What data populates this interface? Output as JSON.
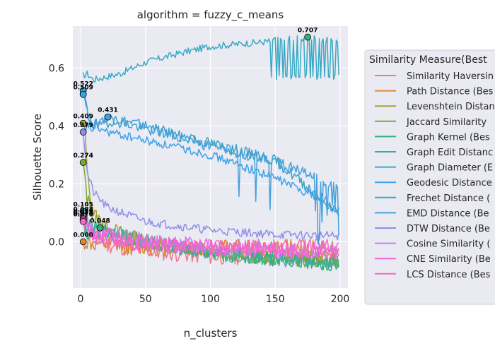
{
  "chart_data": {
    "type": "line",
    "title": "algorithm = fuzzy_c_means",
    "xlabel": "n_clusters",
    "ylabel": "Silhouette Score",
    "xlim": [
      -6,
      206
    ],
    "ylim": [
      -0.16,
      0.745
    ],
    "xticks": [
      0,
      50,
      100,
      150,
      200
    ],
    "yticks": [
      0.0,
      0.2,
      0.4,
      0.6
    ],
    "grid": true,
    "legend_position": "right (outside)",
    "legend_title": "Similarity Measure(Best",
    "series": [
      {
        "name": "Similarity Haversin",
        "color": "#f77189",
        "best_x": 2,
        "best_y": 0.079,
        "anchors": [
          [
            2,
            0.079
          ],
          [
            5,
            0.05
          ],
          [
            10,
            0.02
          ],
          [
            20,
            -0.01
          ],
          [
            50,
            -0.03
          ],
          [
            100,
            -0.05
          ],
          [
            150,
            -0.05
          ],
          [
            200,
            -0.06
          ]
        ],
        "noise": 0.03,
        "seed": 11
      },
      {
        "name": "Path Distance (Bes",
        "color": "#dc8932",
        "best_x": 2,
        "best_y": 0.0,
        "anchors": [
          [
            2,
            0.0
          ],
          [
            10,
            -0.01
          ],
          [
            50,
            -0.02
          ],
          [
            100,
            -0.02
          ],
          [
            200,
            -0.02
          ]
        ],
        "noise": 0.03,
        "seed": 12
      },
      {
        "name": "Levenshtein Distan",
        "color": "#ae9d31",
        "best_x": 3,
        "best_y": 0.409,
        "anchors": [
          [
            2,
            0.4
          ],
          [
            3,
            0.409
          ],
          [
            6,
            0.2
          ],
          [
            10,
            0.1
          ],
          [
            20,
            0.05
          ],
          [
            50,
            0.0
          ],
          [
            100,
            -0.03
          ],
          [
            150,
            -0.05
          ],
          [
            200,
            -0.06
          ]
        ],
        "noise": 0.025,
        "seed": 13
      },
      {
        "name": "Jaccard Similarity",
        "color": "#77ab31",
        "best_x": 2,
        "best_y": 0.274,
        "anchors": [
          [
            2,
            0.274
          ],
          [
            5,
            0.15
          ],
          [
            10,
            0.08
          ],
          [
            20,
            0.04
          ],
          [
            50,
            0.0
          ],
          [
            100,
            -0.04
          ],
          [
            150,
            -0.06
          ],
          [
            200,
            -0.07
          ]
        ],
        "noise": 0.025,
        "seed": 14
      },
      {
        "name": "Graph Kernel (Bes",
        "color": "#33b07a",
        "best_x": 15,
        "best_y": 0.048,
        "anchors": [
          [
            2,
            0.03
          ],
          [
            15,
            0.048
          ],
          [
            30,
            0.02
          ],
          [
            50,
            0.0
          ],
          [
            100,
            -0.04
          ],
          [
            150,
            -0.06
          ],
          [
            200,
            -0.08
          ]
        ],
        "noise": 0.025,
        "seed": 15
      },
      {
        "name": "Graph Edit Distanc",
        "color": "#36ada4",
        "best_x": 2,
        "best_y": 0.105,
        "anchors": [
          [
            2,
            0.105
          ],
          [
            5,
            0.07
          ],
          [
            10,
            0.04
          ],
          [
            50,
            0.0
          ],
          [
            100,
            -0.04
          ],
          [
            150,
            -0.06
          ],
          [
            200,
            -0.08
          ]
        ],
        "noise": 0.025,
        "seed": 16
      },
      {
        "name": "Graph Diameter (E",
        "color": "#38a9c5",
        "best_x": 175,
        "best_y": 0.707,
        "anchors": [
          [
            2,
            0.575
          ],
          [
            5,
            0.58
          ],
          [
            10,
            0.56
          ],
          [
            30,
            0.58
          ],
          [
            50,
            0.62
          ],
          [
            75,
            0.65
          ],
          [
            100,
            0.675
          ],
          [
            140,
            0.69
          ],
          [
            175,
            0.707
          ],
          [
            200,
            0.69
          ]
        ],
        "noise": 0.012,
        "seed": 17,
        "unstable_from": 145,
        "low": 0.56
      },
      {
        "name": "Geodesic Distance",
        "color": "#3ba3ec",
        "best_x": 2,
        "best_y": 0.509,
        "anchors": [
          [
            2,
            0.509
          ],
          [
            5,
            0.45
          ],
          [
            10,
            0.4
          ],
          [
            20,
            0.38
          ],
          [
            50,
            0.35
          ],
          [
            100,
            0.3
          ],
          [
            150,
            0.22
          ],
          [
            180,
            0.16
          ],
          [
            200,
            0.09
          ]
        ],
        "noise": 0.015,
        "seed": 18
      },
      {
        "name": "Frechet Distance (",
        "color": "#3aa3c8",
        "best_x": 2,
        "best_y": 0.522,
        "anchors": [
          [
            2,
            0.522
          ],
          [
            6,
            0.43
          ],
          [
            10,
            0.4
          ],
          [
            25,
            0.42
          ],
          [
            50,
            0.39
          ],
          [
            100,
            0.34
          ],
          [
            150,
            0.28
          ],
          [
            200,
            0.1
          ]
        ],
        "noise": 0.02,
        "seed": 19
      },
      {
        "name": "EMD Distance (Be",
        "color": "#44a1dd",
        "best_x": 21,
        "best_y": 0.431,
        "anchors": [
          [
            2,
            0.4
          ],
          [
            10,
            0.4
          ],
          [
            21,
            0.431
          ],
          [
            50,
            0.4
          ],
          [
            100,
            0.33
          ],
          [
            150,
            0.28
          ],
          [
            180,
            0.22
          ],
          [
            200,
            0.2
          ]
        ],
        "noise": 0.02,
        "seed": 20,
        "dips": true
      },
      {
        "name": "DTW Distance (Be",
        "color": "#8e8fe8",
        "best_x": 2,
        "best_y": 0.379,
        "anchors": [
          [
            2,
            0.379
          ],
          [
            5,
            0.24
          ],
          [
            10,
            0.17
          ],
          [
            20,
            0.12
          ],
          [
            50,
            0.07
          ],
          [
            100,
            0.04
          ],
          [
            150,
            0.025
          ],
          [
            200,
            0.02
          ]
        ],
        "noise": 0.015,
        "seed": 21
      },
      {
        "name": "Cosine Similarity (",
        "color": "#cc7af4",
        "best_x": 2,
        "best_y": 0.075,
        "anchors": [
          [
            2,
            0.075
          ],
          [
            10,
            0.04
          ],
          [
            50,
            0.0
          ],
          [
            100,
            -0.02
          ],
          [
            150,
            -0.03
          ],
          [
            200,
            -0.03
          ]
        ],
        "noise": 0.03,
        "seed": 22
      },
      {
        "name": "CNE Similarity (Be",
        "color": "#f45fe0",
        "best_x": 2,
        "best_y": 0.088,
        "anchors": [
          [
            2,
            0.088
          ],
          [
            10,
            0.03
          ],
          [
            50,
            -0.01
          ],
          [
            100,
            -0.02
          ],
          [
            200,
            -0.03
          ]
        ],
        "noise": 0.03,
        "seed": 23
      },
      {
        "name": "LCS Distance (Bes",
        "color": "#f668c2",
        "best_x": 2,
        "best_y": 0.07,
        "anchors": [
          [
            2,
            0.07
          ],
          [
            10,
            0.02
          ],
          [
            50,
            -0.01
          ],
          [
            100,
            -0.02
          ],
          [
            200,
            -0.02
          ]
        ],
        "noise": 0.03,
        "seed": 24
      }
    ],
    "annotations": [
      {
        "x": 175,
        "y": 0.707,
        "text": "0.707",
        "color": "#33b07a"
      },
      {
        "x": 2,
        "y": 0.522,
        "text": "0.522",
        "color": "#3aa3c8"
      },
      {
        "x": 2,
        "y": 0.509,
        "text": "0.509",
        "color": "#3ba3ec"
      },
      {
        "x": 21,
        "y": 0.431,
        "text": "0.431",
        "color": "#44a1dd"
      },
      {
        "x": 2,
        "y": 0.409,
        "text": "0.409",
        "color": "#ae9d31"
      },
      {
        "x": 2,
        "y": 0.379,
        "text": "0.379",
        "color": "#8e8fe8"
      },
      {
        "x": 2,
        "y": 0.274,
        "text": "0.274",
        "color": "#77ab31"
      },
      {
        "x": 2,
        "y": 0.105,
        "text": "0.105",
        "color": "#36ada4"
      },
      {
        "x": 2,
        "y": 0.088,
        "text": "0.088",
        "color": "#f45fe0"
      },
      {
        "x": 2,
        "y": 0.079,
        "text": "0.079",
        "color": "#f77189"
      },
      {
        "x": 2,
        "y": 0.075,
        "text": "0.075",
        "color": "#cc7af4"
      },
      {
        "x": 2,
        "y": 0.07,
        "text": "0.070",
        "color": "#f668c2"
      },
      {
        "x": 15,
        "y": 0.048,
        "text": "0.048",
        "color": "#33b07a"
      },
      {
        "x": 2,
        "y": 0.0,
        "text": "0.000",
        "color": "#dc8932"
      }
    ]
  }
}
